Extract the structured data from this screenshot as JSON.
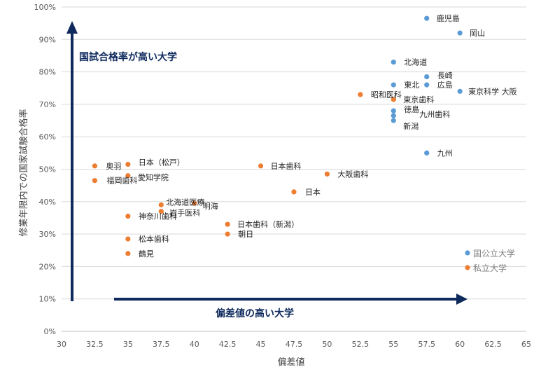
{
  "chart_data": {
    "type": "scatter",
    "title": "",
    "xlabel": "偏差値",
    "ylabel": "修業年限内での国家試験合格率",
    "xlim": [
      30,
      65
    ],
    "ylim": [
      0,
      100
    ],
    "x_ticks": [
      "30",
      "32.5",
      "35",
      "37.5",
      "40",
      "42.5",
      "45",
      "47.5",
      "50",
      "52.5",
      "55",
      "57.5",
      "60",
      "62.5",
      "65"
    ],
    "y_ticks": [
      "0%",
      "10%",
      "20%",
      "30%",
      "40%",
      "50%",
      "60%",
      "70%",
      "80%",
      "90%",
      "100%"
    ],
    "grid": "horizontal",
    "legend": "bottom-right",
    "colors": {
      "national": "#5b9bd5",
      "private": "#ed7d31",
      "annotation": "#0e2a5c"
    },
    "annotations": {
      "vertical_arrow": "国試合格率が高い大学",
      "horizontal_arrow": "偏差値の高い大学"
    },
    "series": [
      {
        "name": "国公立大学",
        "color": "#5b9bd5",
        "points": [
          {
            "x": 57.5,
            "y": 96.5,
            "label": "鹿児島"
          },
          {
            "x": 60,
            "y": 92,
            "label": "岡山"
          },
          {
            "x": 55,
            "y": 83,
            "label": "北海道"
          },
          {
            "x": 57.5,
            "y": 78.5,
            "label": "長崎"
          },
          {
            "x": 55,
            "y": 76,
            "label": "東北"
          },
          {
            "x": 57.5,
            "y": 76,
            "label": "広島"
          },
          {
            "x": 60,
            "y": 74,
            "label": "東京科学 大阪"
          },
          {
            "x": 55,
            "y": 68,
            "label": "徳島"
          },
          {
            "x": 55,
            "y": 66.5,
            "label": "九州歯科"
          },
          {
            "x": 55,
            "y": 65,
            "label": "新潟"
          },
          {
            "x": 57.5,
            "y": 55,
            "label": "九州"
          }
        ]
      },
      {
        "name": "私立大学",
        "color": "#ed7d31",
        "points": [
          {
            "x": 52.5,
            "y": 73,
            "label": "昭和医科"
          },
          {
            "x": 55,
            "y": 71.5,
            "label": "東京歯科"
          },
          {
            "x": 45,
            "y": 51,
            "label": "日本歯科"
          },
          {
            "x": 50,
            "y": 48.5,
            "label": "大阪歯科"
          },
          {
            "x": 47.5,
            "y": 43,
            "label": "日本"
          },
          {
            "x": 32.5,
            "y": 51,
            "label": "奥羽"
          },
          {
            "x": 35,
            "y": 51.5,
            "label": "日本（松戸）"
          },
          {
            "x": 35,
            "y": 48,
            "label": "愛知学院"
          },
          {
            "x": 32.5,
            "y": 46.5,
            "label": "福岡歯科"
          },
          {
            "x": 37.5,
            "y": 39,
            "label": "北海道医療"
          },
          {
            "x": 40,
            "y": 39.5,
            "label": "明海"
          },
          {
            "x": 37.5,
            "y": 37,
            "label": "岩手医科"
          },
          {
            "x": 35,
            "y": 35.5,
            "label": "神奈川歯科"
          },
          {
            "x": 42.5,
            "y": 33,
            "label": "日本歯科（新潟）"
          },
          {
            "x": 42.5,
            "y": 30,
            "label": "朝日"
          },
          {
            "x": 35,
            "y": 28.5,
            "label": "松本歯科"
          },
          {
            "x": 35,
            "y": 24,
            "label": "鶴見"
          }
        ]
      }
    ]
  }
}
